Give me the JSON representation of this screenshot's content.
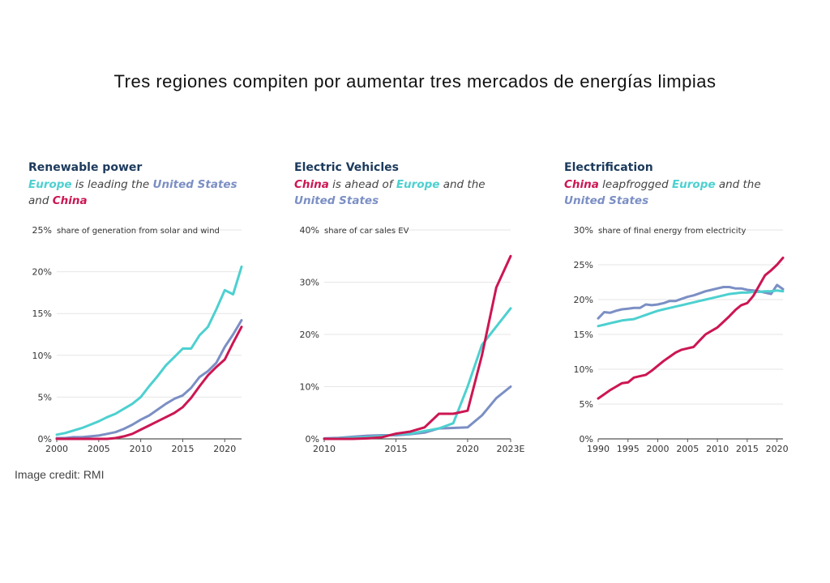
{
  "page": {
    "title": "Tres regiones compiten por aumentar tres mercados de energías limpias",
    "credit": "Image credit: RMI"
  },
  "colors": {
    "europe": "#4dd0d0",
    "us": "#7b8fc4",
    "china": "#cc1652",
    "title": "#1c3a5c",
    "grid": "#e6e6e6"
  },
  "chart_data": [
    {
      "type": "line",
      "title": "Renewable power",
      "subtitle_parts": [
        {
          "text": "Europe",
          "series": "Europe"
        },
        {
          "text": " is leading the "
        },
        {
          "text": "United States",
          "series": "United States"
        },
        {
          "text": " and "
        },
        {
          "text": "China",
          "series": "China"
        }
      ],
      "note": "share of generation from solar and wind",
      "xlim": [
        2000,
        2022
      ],
      "ylim": [
        0,
        25
      ],
      "xticks": [
        2000,
        2005,
        2010,
        2015,
        2020
      ],
      "xtick_labels": [
        "2000",
        "2005",
        "2010",
        "2015",
        "2020"
      ],
      "yticks": [
        0,
        5,
        10,
        15,
        20,
        25
      ],
      "ytick_labels": [
        "0%",
        "5%",
        "10%",
        "15%",
        "20%",
        "25%"
      ],
      "series": [
        {
          "name": "Europe",
          "color": "#4dd0d0",
          "x": [
            2000,
            2001,
            2002,
            2003,
            2004,
            2005,
            2006,
            2007,
            2008,
            2009,
            2010,
            2011,
            2012,
            2013,
            2014,
            2015,
            2016,
            2017,
            2018,
            2019,
            2020,
            2021,
            2022
          ],
          "y": [
            0.5,
            0.7,
            1.0,
            1.3,
            1.7,
            2.1,
            2.6,
            3.0,
            3.6,
            4.2,
            5.0,
            6.3,
            7.5,
            8.8,
            9.8,
            10.8,
            10.8,
            12.4,
            13.4,
            15.5,
            17.8,
            17.3,
            20.6
          ]
        },
        {
          "name": "United States",
          "color": "#7b8fc4",
          "x": [
            2000,
            2001,
            2002,
            2003,
            2004,
            2005,
            2006,
            2007,
            2008,
            2009,
            2010,
            2011,
            2012,
            2013,
            2014,
            2015,
            2016,
            2017,
            2018,
            2019,
            2020,
            2021,
            2022
          ],
          "y": [
            0.1,
            0.1,
            0.2,
            0.2,
            0.3,
            0.4,
            0.6,
            0.8,
            1.2,
            1.7,
            2.3,
            2.8,
            3.5,
            4.2,
            4.8,
            5.2,
            6.1,
            7.4,
            8.1,
            9.1,
            11.0,
            12.5,
            14.2
          ]
        },
        {
          "name": "China",
          "color": "#cc1652",
          "x": [
            2000,
            2001,
            2002,
            2003,
            2004,
            2005,
            2006,
            2007,
            2008,
            2009,
            2010,
            2011,
            2012,
            2013,
            2014,
            2015,
            2016,
            2017,
            2018,
            2019,
            2020,
            2021,
            2022
          ],
          "y": [
            0.0,
            0.0,
            0.0,
            0.0,
            0.0,
            0.0,
            0.0,
            0.1,
            0.3,
            0.6,
            1.1,
            1.6,
            2.1,
            2.6,
            3.1,
            3.8,
            4.9,
            6.3,
            7.6,
            8.6,
            9.5,
            11.5,
            13.4
          ]
        }
      ]
    },
    {
      "type": "line",
      "title": "Electric Vehicles",
      "subtitle_parts": [
        {
          "text": "China",
          "series": "China"
        },
        {
          "text": " is ahead of "
        },
        {
          "text": "Europe",
          "series": "Europe"
        },
        {
          "text": " and the "
        },
        {
          "text": "United States",
          "series": "United States"
        }
      ],
      "note": "share of car sales EV",
      "xlim": [
        2010,
        2023
      ],
      "ylim": [
        0,
        40
      ],
      "xticks": [
        2010,
        2015,
        2020,
        2023
      ],
      "xtick_labels": [
        "2010",
        "2015",
        "2020",
        "2023E"
      ],
      "yticks": [
        0,
        10,
        20,
        30,
        40
      ],
      "ytick_labels": [
        "0%",
        "10%",
        "20%",
        "30%",
        "40%"
      ],
      "series": [
        {
          "name": "United States",
          "color": "#7b8fc4",
          "x": [
            2010,
            2011,
            2012,
            2013,
            2014,
            2015,
            2016,
            2017,
            2018,
            2019,
            2020,
            2021,
            2022,
            2023
          ],
          "y": [
            0.1,
            0.2,
            0.4,
            0.6,
            0.7,
            0.7,
            0.9,
            1.2,
            2.0,
            2.1,
            2.2,
            4.5,
            7.8,
            10.0
          ]
        },
        {
          "name": "Europe",
          "color": "#4dd0d0",
          "x": [
            2010,
            2011,
            2012,
            2013,
            2014,
            2015,
            2016,
            2017,
            2018,
            2019,
            2020,
            2021,
            2022,
            2023
          ],
          "y": [
            0.0,
            0.1,
            0.2,
            0.3,
            0.5,
            0.9,
            1.0,
            1.5,
            2.0,
            3.0,
            10.0,
            18.0,
            21.5,
            25.0
          ]
        },
        {
          "name": "China",
          "color": "#cc1652",
          "x": [
            2010,
            2011,
            2012,
            2013,
            2014,
            2015,
            2016,
            2017,
            2018,
            2019,
            2020,
            2021,
            2022,
            2023
          ],
          "y": [
            0.0,
            0.0,
            0.0,
            0.1,
            0.3,
            1.0,
            1.4,
            2.2,
            4.8,
            4.8,
            5.4,
            16.0,
            29.0,
            35.0
          ]
        }
      ]
    },
    {
      "type": "line",
      "title": "Electrification",
      "subtitle_parts": [
        {
          "text": "China",
          "series": "China"
        },
        {
          "text": " leapfrogged "
        },
        {
          "text": "Europe",
          "series": "Europe"
        },
        {
          "text": " and the "
        },
        {
          "text": "United States",
          "series": "United States"
        }
      ],
      "note": "share of final energy from electricity",
      "xlim": [
        1990,
        2021
      ],
      "ylim": [
        0,
        30
      ],
      "xticks": [
        1990,
        1995,
        2000,
        2005,
        2010,
        2015,
        2020
      ],
      "xtick_labels": [
        "1990",
        "1995",
        "2000",
        "2005",
        "2010",
        "2015",
        "2020"
      ],
      "yticks": [
        0,
        5,
        10,
        15,
        20,
        25,
        30
      ],
      "ytick_labels": [
        "0%",
        "5%",
        "10%",
        "15%",
        "20%",
        "25%",
        "30%"
      ],
      "series": [
        {
          "name": "United States",
          "color": "#7b8fc4",
          "x": [
            1990,
            1991,
            1992,
            1993,
            1994,
            1995,
            1996,
            1997,
            1998,
            1999,
            2000,
            2001,
            2002,
            2003,
            2004,
            2005,
            2006,
            2007,
            2008,
            2009,
            2010,
            2011,
            2012,
            2013,
            2014,
            2015,
            2016,
            2017,
            2018,
            2019,
            2020,
            2021
          ],
          "y": [
            17.3,
            18.2,
            18.1,
            18.4,
            18.6,
            18.7,
            18.8,
            18.8,
            19.3,
            19.2,
            19.3,
            19.5,
            19.8,
            19.8,
            20.1,
            20.4,
            20.6,
            20.9,
            21.2,
            21.4,
            21.6,
            21.8,
            21.8,
            21.6,
            21.6,
            21.4,
            21.3,
            21.2,
            21.0,
            20.8,
            22.1,
            21.5
          ]
        },
        {
          "name": "Europe",
          "color": "#4dd0d0",
          "x": [
            1990,
            1991,
            1992,
            1993,
            1994,
            1995,
            1996,
            1997,
            1998,
            1999,
            2000,
            2001,
            2002,
            2003,
            2004,
            2005,
            2006,
            2007,
            2008,
            2009,
            2010,
            2011,
            2012,
            2013,
            2014,
            2015,
            2016,
            2017,
            2018,
            2019,
            2020,
            2021
          ],
          "y": [
            16.2,
            16.4,
            16.6,
            16.8,
            17.0,
            17.1,
            17.2,
            17.5,
            17.8,
            18.1,
            18.4,
            18.6,
            18.8,
            19.0,
            19.2,
            19.4,
            19.6,
            19.8,
            20.0,
            20.2,
            20.4,
            20.6,
            20.8,
            20.9,
            21.0,
            21.0,
            21.1,
            21.1,
            21.2,
            21.2,
            21.3,
            21.2
          ]
        },
        {
          "name": "China",
          "color": "#cc1652",
          "x": [
            1990,
            1991,
            1992,
            1993,
            1994,
            1995,
            1996,
            1997,
            1998,
            1999,
            2000,
            2001,
            2002,
            2003,
            2004,
            2005,
            2006,
            2007,
            2008,
            2009,
            2010,
            2011,
            2012,
            2013,
            2014,
            2015,
            2016,
            2017,
            2018,
            2019,
            2020,
            2021
          ],
          "y": [
            5.8,
            6.4,
            7.0,
            7.5,
            8.0,
            8.1,
            8.8,
            9.0,
            9.2,
            9.8,
            10.5,
            11.2,
            11.8,
            12.4,
            12.8,
            13.0,
            13.2,
            14.1,
            15.0,
            15.5,
            16.0,
            16.8,
            17.6,
            18.5,
            19.2,
            19.5,
            20.5,
            22.0,
            23.5,
            24.2,
            25.0,
            26.0
          ]
        }
      ]
    }
  ]
}
